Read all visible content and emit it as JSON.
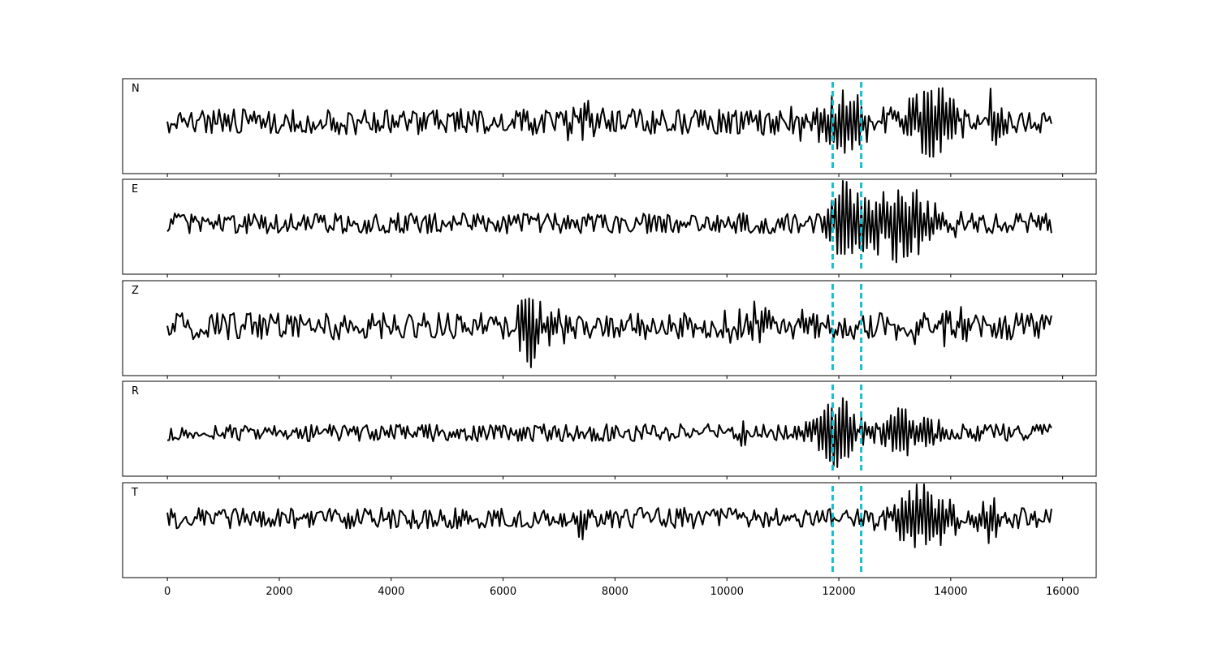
{
  "chart_data": {
    "type": "line",
    "title": "",
    "xlabel": "",
    "ylabel": "",
    "xlim": [
      -800,
      16600
    ],
    "xticks": [
      0,
      2000,
      4000,
      6000,
      8000,
      10000,
      12000,
      14000,
      16000
    ],
    "xtick_labels": [
      "0",
      "2000",
      "4000",
      "6000",
      "8000",
      "10000",
      "12000",
      "14000",
      "16000"
    ],
    "grid": false,
    "samples": {
      "start": 0,
      "end": 15800,
      "count": 480
    },
    "markers": [
      11890,
      12400
    ],
    "marker_color": "#17becf",
    "trace_color": "#000000",
    "panels": [
      {
        "name": "N",
        "seed": 11,
        "noise": 0.3,
        "ylim": [
          -1.2,
          1.0
        ],
        "features": [
          [
            7400,
            0.3,
            300
          ],
          [
            11700,
            0.3,
            600
          ],
          [
            12150,
            0.45,
            400
          ],
          [
            13600,
            0.75,
            500
          ],
          [
            14750,
            0.6,
            150
          ]
        ]
      },
      {
        "name": "E",
        "seed": 23,
        "noise": 0.22,
        "ylim": [
          -1.1,
          0.95
        ],
        "features": [
          [
            12080,
            0.85,
            250
          ],
          [
            12600,
            0.5,
            400
          ],
          [
            13150,
            0.5,
            350
          ],
          [
            13500,
            0.35,
            600
          ]
        ]
      },
      {
        "name": "Z",
        "seed": 37,
        "noise": 0.35,
        "ylim": [
          -1.3,
          1.2
        ],
        "features": [
          [
            6450,
            0.85,
            180
          ],
          [
            6750,
            0.4,
            400
          ],
          [
            10450,
            0.35,
            500
          ],
          [
            11300,
            0.3,
            300
          ],
          [
            13800,
            0.3,
            600
          ]
        ]
      },
      {
        "name": "R",
        "seed": 53,
        "noise": 0.22,
        "ylim": [
          -1.1,
          1.3
        ],
        "features": [
          [
            10300,
            0.35,
            100
          ],
          [
            11700,
            0.25,
            300
          ],
          [
            12050,
            0.85,
            300
          ],
          [
            13050,
            0.55,
            300
          ],
          [
            13500,
            0.3,
            400
          ]
        ]
      },
      {
        "name": "T",
        "seed": 71,
        "noise": 0.28,
        "ylim": [
          -1.6,
          0.95
        ],
        "features": [
          [
            7400,
            0.35,
            150
          ],
          [
            13600,
            0.8,
            450
          ],
          [
            14750,
            0.5,
            200
          ],
          [
            13100,
            0.3,
            400
          ]
        ]
      }
    ]
  }
}
